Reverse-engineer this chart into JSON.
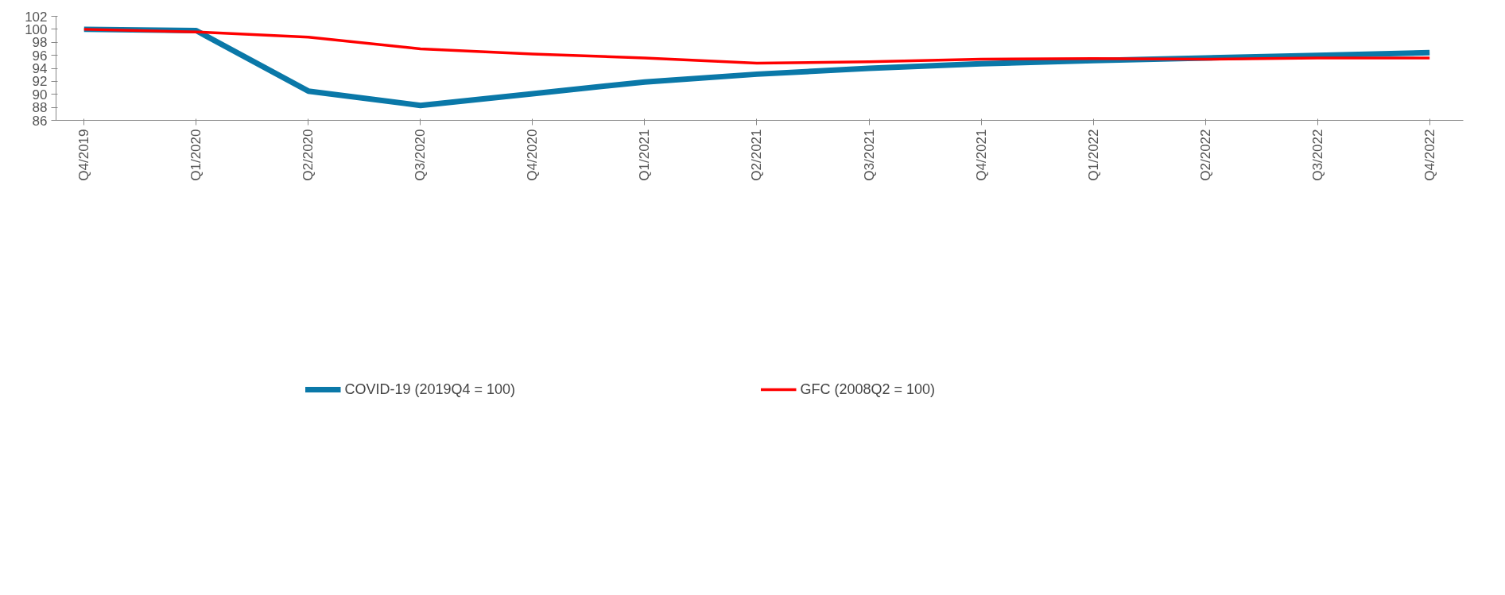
{
  "chart_data": {
    "type": "line",
    "categories": [
      "Q4/2019",
      "Q1/2020",
      "Q2/2020",
      "Q3/2020",
      "Q4/2020",
      "Q1/2021",
      "Q2/2021",
      "Q3/2021",
      "Q4/2021",
      "Q1/2022",
      "Q2/2022",
      "Q3/2022",
      "Q4/2022"
    ],
    "series": [
      {
        "name": "COVID-19 (2019Q4 = 100)",
        "color": "#0a78a8",
        "values": [
          100,
          99.8,
          90.5,
          88.3,
          90.1,
          91.9,
          93.1,
          94.0,
          94.7,
          95.2,
          95.6,
          96.0,
          96.4
        ]
      },
      {
        "name": "GFC (2008Q2 = 100)",
        "color": "#ff0000",
        "values": [
          100,
          99.6,
          98.8,
          97.0,
          96.2,
          95.6,
          94.8,
          95.0,
          95.4,
          95.5,
          95.4,
          95.6,
          95.6
        ]
      }
    ],
    "ylim": [
      86,
      102
    ],
    "yticks": [
      86,
      88,
      90,
      92,
      94,
      96,
      98,
      100,
      102
    ],
    "grid": false,
    "legend": "bottom",
    "marker": "none",
    "line_style": "solid"
  }
}
